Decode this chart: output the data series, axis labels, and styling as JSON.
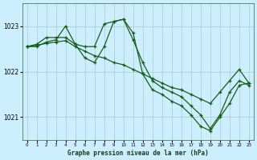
{
  "title": "Graphe pression niveau de la mer (hPa)",
  "background_color": "#cceeff",
  "grid_color": "#aacccc",
  "line_color": "#1a5c1a",
  "xlim": [
    -0.5,
    23.5
  ],
  "ylim": [
    1020.5,
    1023.5
  ],
  "yticks": [
    1021,
    1022,
    1023
  ],
  "xticks": [
    0,
    1,
    2,
    3,
    4,
    5,
    6,
    7,
    8,
    9,
    10,
    11,
    12,
    13,
    14,
    15,
    16,
    17,
    18,
    19,
    20,
    21,
    22,
    23
  ],
  "series": [
    {
      "x": [
        0,
        1,
        2,
        3,
        4,
        5,
        6,
        7,
        8,
        9,
        10,
        11,
        12,
        13,
        14,
        15,
        16,
        17,
        18,
        19,
        20,
        21,
        22,
        23
      ],
      "y": [
        1022.55,
        1022.6,
        1022.75,
        1022.75,
        1022.75,
        1022.6,
        1022.55,
        1022.55,
        1023.05,
        1023.1,
        1023.15,
        1022.85,
        1021.95,
        1021.6,
        1021.5,
        1021.35,
        1021.25,
        1021.05,
        1020.8,
        1020.7,
        1021.0,
        1021.3,
        1021.7,
        1021.75
      ]
    },
    {
      "x": [
        0,
        1,
        2,
        3,
        4,
        5,
        6,
        7,
        8,
        9,
        10,
        11,
        12,
        13,
        14,
        15,
        16,
        17,
        18,
        19,
        20,
        21,
        22,
        23
      ],
      "y": [
        1022.55,
        1022.58,
        1022.62,
        1022.65,
        1022.68,
        1022.55,
        1022.45,
        1022.35,
        1022.3,
        1022.2,
        1022.15,
        1022.05,
        1021.95,
        1021.85,
        1021.75,
        1021.65,
        1021.6,
        1021.5,
        1021.4,
        1021.3,
        1021.55,
        1021.8,
        1022.05,
        1021.75
      ]
    },
    {
      "x": [
        0,
        1,
        2,
        3,
        4,
        5,
        6,
        7,
        8,
        9,
        10,
        11,
        12,
        13,
        14,
        15,
        16,
        17,
        18,
        19,
        20,
        21,
        22,
        23
      ],
      "y": [
        1022.55,
        1022.55,
        1022.65,
        1022.7,
        1023.0,
        1022.6,
        1022.3,
        1022.2,
        1022.55,
        1023.1,
        1023.15,
        1022.7,
        1022.2,
        1021.8,
        1021.65,
        1021.55,
        1021.45,
        1021.25,
        1021.05,
        1020.75,
        1021.05,
        1021.55,
        1021.8,
        1021.7
      ]
    }
  ]
}
